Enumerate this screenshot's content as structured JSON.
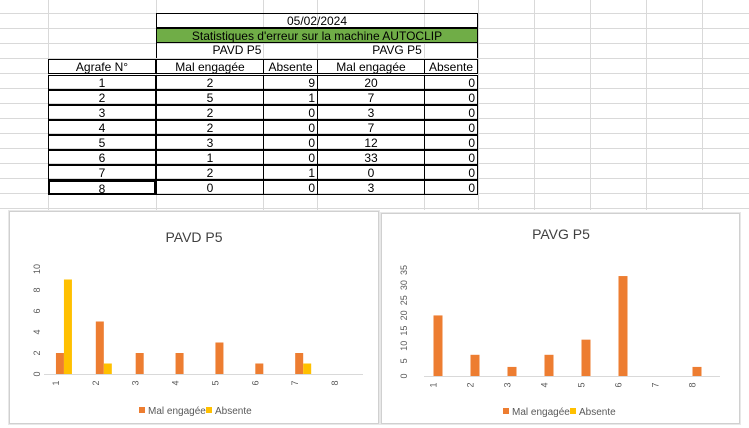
{
  "table": {
    "date": "05/02/2024",
    "title": "Statistiques d'erreur sur la machine AUTOCLIP",
    "group_left": "PAVD P5",
    "group_right": "PAVG P5",
    "col_agrafe": "Agrafe N°",
    "col_mal": "Mal engagée",
    "col_absente": "Absente",
    "rows": [
      {
        "n": "1",
        "d_mal": "2",
        "d_abs": "9",
        "g_mal": "20",
        "g_abs": "0"
      },
      {
        "n": "2",
        "d_mal": "5",
        "d_abs": "1",
        "g_mal": "7",
        "g_abs": "0"
      },
      {
        "n": "3",
        "d_mal": "2",
        "d_abs": "0",
        "g_mal": "3",
        "g_abs": "0"
      },
      {
        "n": "4",
        "d_mal": "2",
        "d_abs": "0",
        "g_mal": "7",
        "g_abs": "0"
      },
      {
        "n": "5",
        "d_mal": "3",
        "d_abs": "0",
        "g_mal": "12",
        "g_abs": "0"
      },
      {
        "n": "6",
        "d_mal": "1",
        "d_abs": "0",
        "g_mal": "33",
        "g_abs": "0"
      },
      {
        "n": "7",
        "d_mal": "2",
        "d_abs": "1",
        "g_mal": "0",
        "g_abs": "0"
      },
      {
        "n": "8",
        "d_mal": "0",
        "d_abs": "0",
        "g_mal": "3",
        "g_abs": "0"
      }
    ]
  },
  "colors": {
    "mal": "#ed7d31",
    "absente": "#ffc000",
    "header_green": "#70ad47",
    "axis_text": "#595959"
  },
  "chart_data": [
    {
      "type": "bar",
      "title": "PAVD P5",
      "categories": [
        "1",
        "2",
        "3",
        "4",
        "5",
        "6",
        "7",
        "8"
      ],
      "series": [
        {
          "name": "Mal engagée",
          "values": [
            2,
            5,
            2,
            2,
            3,
            1,
            2,
            0
          ]
        },
        {
          "name": "Absente",
          "values": [
            9,
            1,
            0,
            0,
            0,
            0,
            1,
            0
          ]
        }
      ],
      "ylim": [
        0,
        10
      ],
      "yticks": [
        "0",
        "2",
        "4",
        "6",
        "8",
        "10"
      ],
      "legend": "bottom"
    },
    {
      "type": "bar",
      "title": "PAVG P5",
      "categories": [
        "1",
        "2",
        "3",
        "4",
        "5",
        "6",
        "7",
        "8"
      ],
      "series": [
        {
          "name": "Mal engagée",
          "values": [
            20,
            7,
            3,
            7,
            12,
            33,
            0,
            3
          ]
        },
        {
          "name": "Absente",
          "values": [
            0,
            0,
            0,
            0,
            0,
            0,
            0,
            0
          ]
        }
      ],
      "ylim": [
        0,
        35
      ],
      "yticks": [
        "0",
        "5",
        "10",
        "15",
        "20",
        "25",
        "30",
        "35"
      ],
      "legend": "bottom"
    }
  ]
}
